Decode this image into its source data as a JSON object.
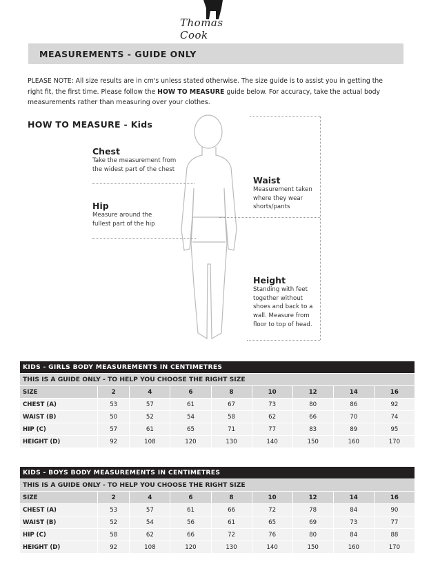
{
  "brand": {
    "logo_text": "Thomas Cook"
  },
  "title": "MEASUREMENTS - GUIDE ONLY",
  "note": {
    "prefix": "PLEASE NOTE:  All size results are in cm's unless stated otherwise. The size guide is to assist you in getting the right fit, the first time. Please follow the ",
    "bold": "HOW TO MEASURE",
    "suffix": " guide below. For accuracy, take the actual body measurements rather than measuring over your clothes."
  },
  "how_to": "HOW TO MEASURE - Kids",
  "measures": {
    "chest": {
      "title": "Chest",
      "desc": "Take the measurement from the widest part of the chest"
    },
    "hip": {
      "title": "Hip",
      "desc": "Measure around the fullest part of the hip"
    },
    "waist": {
      "title": "Waist",
      "desc": "Measurement taken where they wear shorts/pants"
    },
    "height": {
      "title": "Height",
      "desc": "Standing with feet together without shoes and back to a wall. Measure from floor to top of head."
    }
  },
  "tables": [
    {
      "title": "KIDS - GIRLS BODY MEASUREMENTS IN CENTIMETRES",
      "subtitle": "THIS IS A GUIDE ONLY - TO HELP YOU CHOOSE THE RIGHT SIZE",
      "rows": [
        {
          "label": "SIZE",
          "values": [
            "2",
            "4",
            "6",
            "8",
            "10",
            "12",
            "14",
            "16"
          ]
        },
        {
          "label": "CHEST (A)",
          "values": [
            "53",
            "57",
            "61",
            "67",
            "73",
            "80",
            "86",
            "92"
          ]
        },
        {
          "label": "WAIST (B)",
          "values": [
            "50",
            "52",
            "54",
            "58",
            "62",
            "66",
            "70",
            "74"
          ]
        },
        {
          "label": "HIP (C)",
          "values": [
            "57",
            "61",
            "65",
            "71",
            "77",
            "83",
            "89",
            "95"
          ]
        },
        {
          "label": "HEIGHT (D)",
          "values": [
            "92",
            "108",
            "120",
            "130",
            "140",
            "150",
            "160",
            "170"
          ]
        }
      ]
    },
    {
      "title": "KIDS - BOYS BODY MEASUREMENTS IN CENTIMETRES",
      "subtitle": "THIS IS A GUIDE ONLY - TO HELP YOU CHOOSE THE RIGHT SIZE",
      "rows": [
        {
          "label": "SIZE",
          "values": [
            "2",
            "4",
            "6",
            "8",
            "10",
            "12",
            "14",
            "16"
          ]
        },
        {
          "label": "CHEST (A)",
          "values": [
            "53",
            "57",
            "61",
            "66",
            "72",
            "78",
            "84",
            "90"
          ]
        },
        {
          "label": "WAIST (B)",
          "values": [
            "52",
            "54",
            "56",
            "61",
            "65",
            "69",
            "73",
            "77"
          ]
        },
        {
          "label": "HIP (C)",
          "values": [
            "58",
            "62",
            "66",
            "72",
            "76",
            "80",
            "84",
            "88"
          ]
        },
        {
          "label": "HEIGHT (D)",
          "values": [
            "92",
            "108",
            "120",
            "130",
            "140",
            "150",
            "160",
            "170"
          ]
        }
      ]
    }
  ]
}
